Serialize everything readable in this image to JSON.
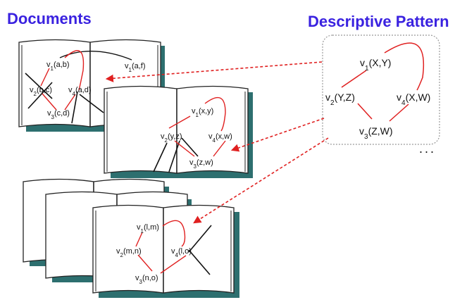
{
  "headers": {
    "documents": "Documents",
    "pattern": "Descriptive Pattern"
  },
  "colors": {
    "header": "#3a22e0",
    "red": "#e02020",
    "teal": "#2d6f6f",
    "dots_border": "#999999"
  },
  "doc1": {
    "v1": "v",
    "v1_sub": "1",
    "v1_args": "(a,b)",
    "v1b": "v",
    "v1b_sub": "1",
    "v1b_args": "(a,f)",
    "v2": "v",
    "v2_sub": "2",
    "v2_args": "(b,c)",
    "v3": "v",
    "v3_sub": "3",
    "v3_args": "(c,d)",
    "v4": "v",
    "v4_sub": "4",
    "v4_args": "(a,d)"
  },
  "doc2": {
    "v1": "v",
    "v1_sub": "1",
    "v1_args": "(x,y)",
    "v2": "v",
    "v2_sub": "2",
    "v2_args": "(y,z)",
    "v3": "v",
    "v3_sub": "3",
    "v3_args": "(z,w)",
    "v4": "v",
    "v4_sub": "4",
    "v4_args": "(x,w)"
  },
  "doc3": {
    "v1": "v",
    "v1_sub": "1",
    "v1_args": "(l,m)",
    "v2": "v",
    "v2_sub": "2",
    "v2_args": "(m,n)",
    "v3": "v",
    "v3_sub": "3",
    "v3_args": "(n,o)",
    "v4": "v",
    "v4_sub": "4",
    "v4_args": "(l,o)"
  },
  "pattern": {
    "v1": "v",
    "v1_sub": "1",
    "v1_args": "(X,Y)",
    "v2": "v",
    "v2_sub": "2",
    "v2_args": "(Y,Z)",
    "v3": "v",
    "v3_sub": "3",
    "v3_args": "(Z,W)",
    "v4": "v",
    "v4_sub": "4",
    "v4_args": "(X,W)"
  },
  "ellipsis": "..."
}
